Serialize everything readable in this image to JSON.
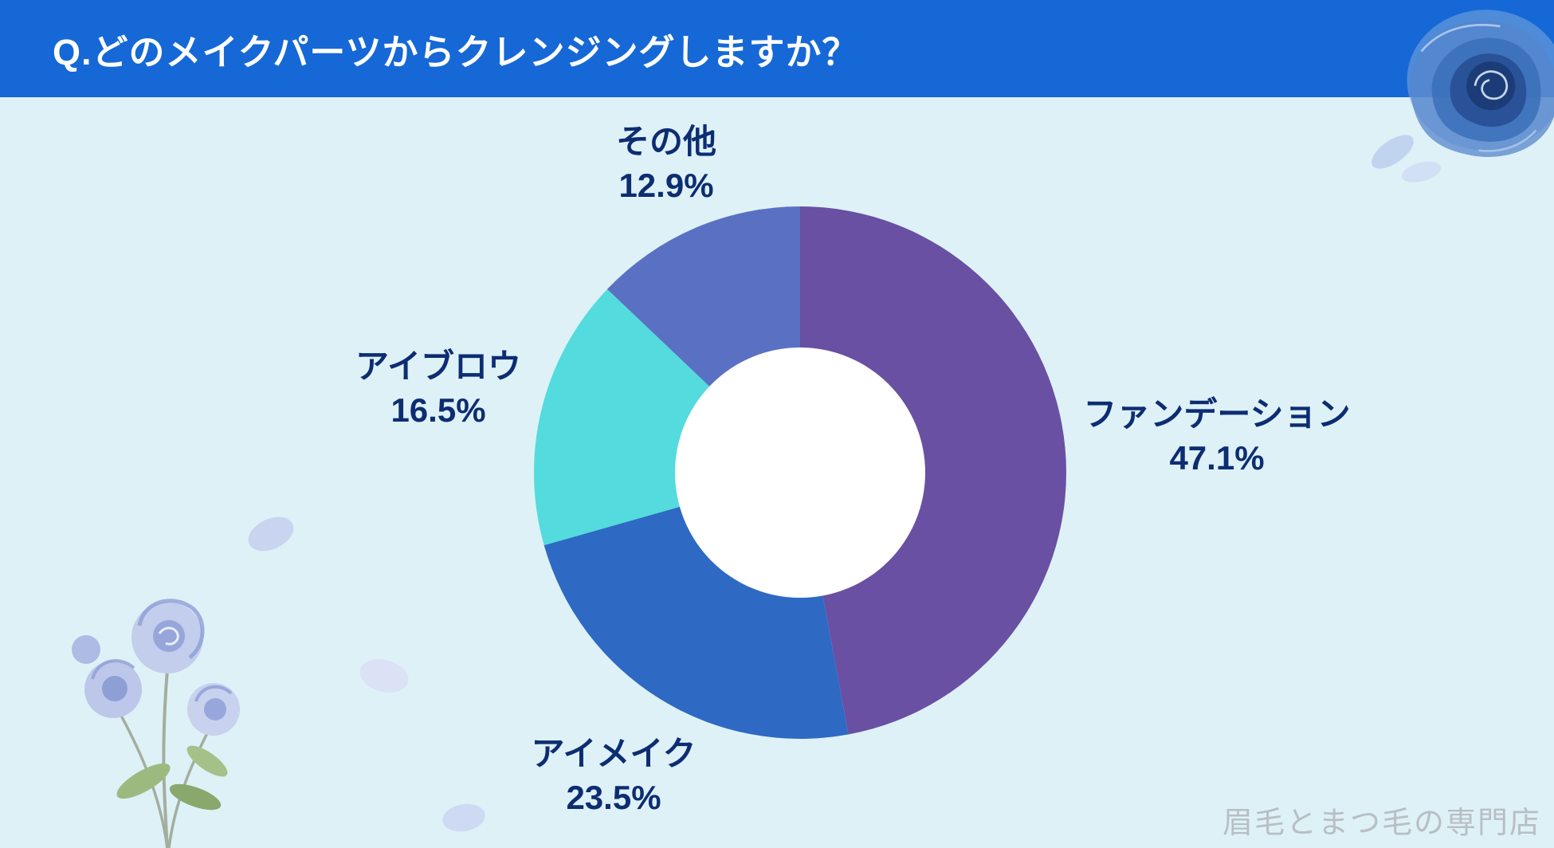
{
  "header": {
    "title": "Q.どのメイクパーツからクレンジングしますか？"
  },
  "chart_data": {
    "type": "pie",
    "subtype": "donut",
    "title": "Q.どのメイクパーツからクレンジングしますか？",
    "start_angle_deg": 0,
    "direction": "clockwise",
    "inner_radius_ratio": 0.47,
    "hole_color": "#ffffff",
    "legend_position": "labels-around-chart",
    "segments": [
      {
        "label": "ファンデーション",
        "value": 47.1,
        "percent_label": "47.1%",
        "color": "#6950a2"
      },
      {
        "label": "アイメイク",
        "value": 23.5,
        "percent_label": "23.5%",
        "color": "#2e69c3"
      },
      {
        "label": "アイブロウ",
        "value": 16.5,
        "percent_label": "16.5%",
        "color": "#53dbdd"
      },
      {
        "label": "その他",
        "value": 12.9,
        "percent_label": "12.9%",
        "color": "#5a71c3"
      }
    ]
  },
  "watermark": "眉毛とまつ毛の専門店",
  "colors": {
    "header_bg": "#1568d6",
    "background": "#def1f7",
    "label_text": "#0d2d72",
    "watermark_text": "#b7bfc4"
  }
}
